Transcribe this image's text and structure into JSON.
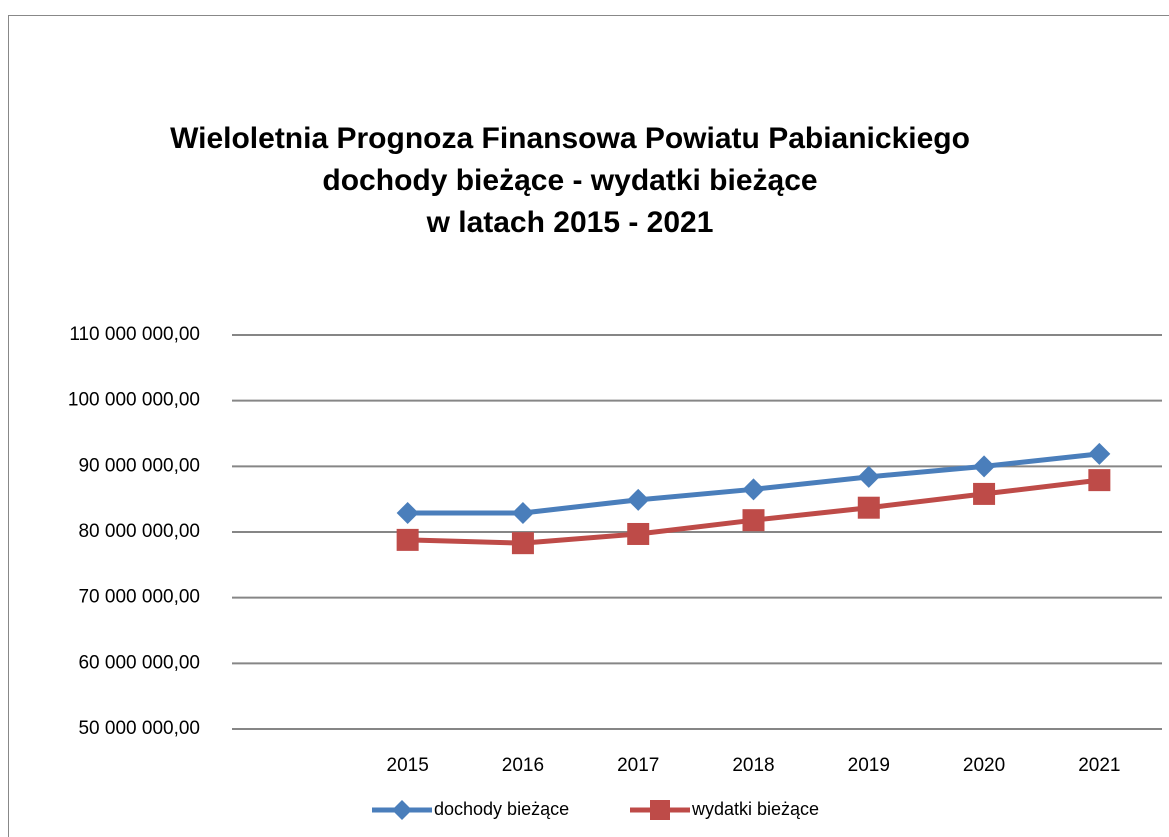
{
  "chart_data": {
    "type": "line",
    "title": [
      "Wieloletnia Prognoza Finansowa Powiatu Pabianickiego",
      "dochody bieżące - wydatki bieżące",
      "w latach 2015 - 2021"
    ],
    "categories": [
      "2015",
      "2016",
      "2017",
      "2018",
      "2019",
      "2020",
      "2021"
    ],
    "series": [
      {
        "name": "dochody bieżące",
        "color": "#4a7ebb",
        "marker": "diamond",
        "values": [
          82900000,
          82900000,
          84900000,
          86500000,
          88400000,
          90000000,
          91900000
        ]
      },
      {
        "name": "wydatki bieżące",
        "color": "#be4b48",
        "marker": "square",
        "values": [
          78800000,
          78300000,
          79700000,
          81800000,
          83700000,
          85800000,
          87900000
        ]
      }
    ],
    "ylim": [
      50000000,
      110000000
    ],
    "yticks": [
      {
        "value": 50000000,
        "label": "50 000 000,00"
      },
      {
        "value": 60000000,
        "label": "60 000 000,00"
      },
      {
        "value": 70000000,
        "label": "70 000 000,00"
      },
      {
        "value": 80000000,
        "label": "80 000 000,00"
      },
      {
        "value": 90000000,
        "label": "90 000 000,00"
      },
      {
        "value": 100000000,
        "label": "100 000 000,00"
      },
      {
        "value": 110000000,
        "label": "110 000 000,00"
      }
    ],
    "grid": true,
    "legend": "bottom"
  }
}
